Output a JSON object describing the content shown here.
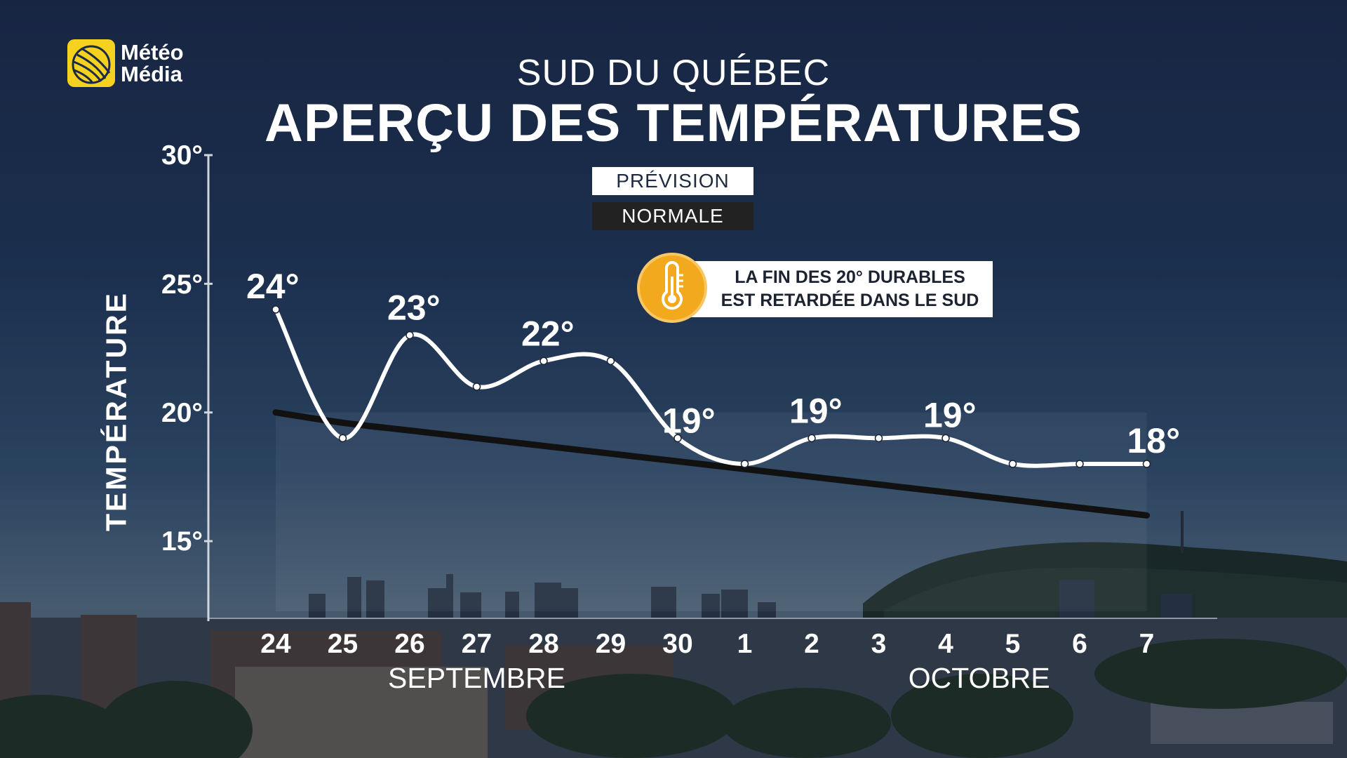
{
  "brand": {
    "name_line1": "Météo",
    "name_line2": "Média",
    "logo_color": "#f5d21e"
  },
  "header": {
    "subtitle": "SUD DU QUÉBEC",
    "title": "APERÇU DES TEMPÉRATURES"
  },
  "legend": {
    "forecast": "PRÉVISION",
    "normal": "NORMALE"
  },
  "callout": {
    "line1": "LA FIN DES 20° DURABLES",
    "line2": "EST RETARDÉE DANS LE SUD",
    "icon": "thermometer-icon",
    "badge_color": "#f2a91e"
  },
  "chart_data": {
    "type": "line",
    "ylabel": "TEMPÉRATURE",
    "ylim": [
      15,
      30
    ],
    "yticks": [
      "15°",
      "20°",
      "25°",
      "30°"
    ],
    "categories": [
      "24",
      "25",
      "26",
      "27",
      "28",
      "29",
      "30",
      "1",
      "2",
      "3",
      "4",
      "5",
      "6",
      "7"
    ],
    "month_labels": [
      "SEPTEMBRE",
      "OCTOBRE"
    ],
    "series": [
      {
        "name": "PRÉVISION",
        "values": [
          24,
          19,
          23,
          21,
          22,
          22,
          19,
          18,
          19,
          19,
          19,
          18,
          18,
          18
        ],
        "color": "#ffffff"
      },
      {
        "name": "NORMALE",
        "values": [
          20,
          19.6,
          19.3,
          19.0,
          18.7,
          18.4,
          18.1,
          17.8,
          17.5,
          17.2,
          16.9,
          16.6,
          16.3,
          16.0
        ],
        "color": "#111111"
      }
    ],
    "data_labels": [
      {
        "text": "24°",
        "index": 0,
        "value": 24
      },
      {
        "text": "23°",
        "index": 2,
        "value": 23
      },
      {
        "text": "22°",
        "index": 4,
        "value": 22
      },
      {
        "text": "19°",
        "index": 6,
        "value": 19
      },
      {
        "text": "19°",
        "index": 8,
        "value": 19
      },
      {
        "text": "19°",
        "index": 10,
        "value": 19
      },
      {
        "text": "18°",
        "index": 13,
        "value": 18
      }
    ]
  }
}
